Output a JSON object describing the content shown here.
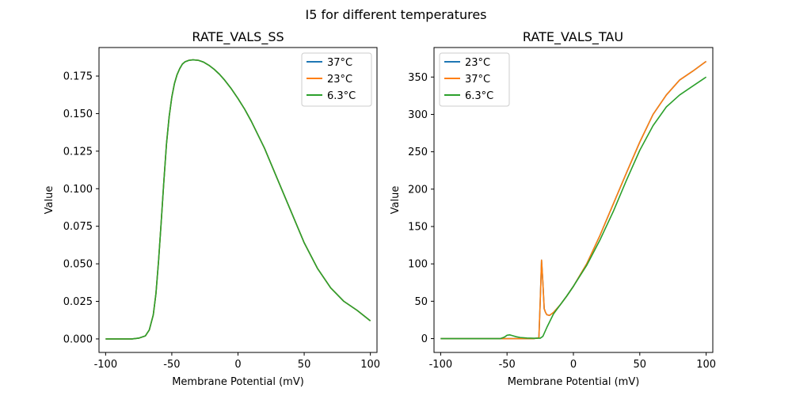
{
  "figure": {
    "suptitle": "I5 for different temperatures"
  },
  "chart_data": [
    {
      "type": "line",
      "title": "RATE_VALS_SS",
      "xlabel": "Membrane Potential (mV)",
      "ylabel": "Value",
      "xlim": [
        -105,
        105
      ],
      "ylim": [
        -0.009,
        0.194
      ],
      "xticks": [
        -100,
        -50,
        0,
        50,
        100
      ],
      "yticks": [
        0.0,
        0.025,
        0.05,
        0.075,
        0.1,
        0.125,
        0.15,
        0.175
      ],
      "ytick_labels": [
        "0.000",
        "0.025",
        "0.050",
        "0.075",
        "0.100",
        "0.125",
        "0.150",
        "0.175"
      ],
      "legend_position": "upper right",
      "series": [
        {
          "name": "37°C",
          "color": "#1f77b4",
          "x": [
            -100,
            -80,
            -75,
            -70,
            -67,
            -64,
            -62,
            -60,
            -58,
            -56,
            -54,
            -52,
            -50,
            -48,
            -46,
            -44,
            -42,
            -40,
            -37,
            -34,
            -30,
            -26,
            -22,
            -18,
            -14,
            -10,
            -5,
            0,
            5,
            10,
            20,
            30,
            40,
            50,
            60,
            70,
            80,
            90,
            100
          ],
          "y": [
            0.0,
            0.0,
            0.0005,
            0.002,
            0.006,
            0.016,
            0.03,
            0.052,
            0.078,
            0.105,
            0.13,
            0.148,
            0.161,
            0.17,
            0.176,
            0.18,
            0.183,
            0.1845,
            0.1855,
            0.1858,
            0.1855,
            0.1843,
            0.1822,
            0.1795,
            0.1762,
            0.1722,
            0.1665,
            0.16,
            0.153,
            0.145,
            0.127,
            0.106,
            0.085,
            0.064,
            0.047,
            0.034,
            0.025,
            0.019,
            0.012
          ]
        },
        {
          "name": "23°C",
          "color": "#ff7f0e",
          "x": [
            -100,
            -80,
            -75,
            -70,
            -67,
            -64,
            -62,
            -60,
            -58,
            -56,
            -54,
            -52,
            -50,
            -48,
            -46,
            -44,
            -42,
            -40,
            -37,
            -34,
            -30,
            -26,
            -22,
            -18,
            -14,
            -10,
            -5,
            0,
            5,
            10,
            20,
            30,
            40,
            50,
            60,
            70,
            80,
            90,
            100
          ],
          "y": [
            0.0,
            0.0,
            0.0005,
            0.002,
            0.006,
            0.016,
            0.03,
            0.052,
            0.078,
            0.105,
            0.13,
            0.148,
            0.161,
            0.17,
            0.176,
            0.18,
            0.183,
            0.1845,
            0.1855,
            0.1858,
            0.1855,
            0.1843,
            0.1822,
            0.1795,
            0.1762,
            0.1722,
            0.1665,
            0.16,
            0.153,
            0.145,
            0.127,
            0.106,
            0.085,
            0.064,
            0.047,
            0.034,
            0.025,
            0.019,
            0.012
          ]
        },
        {
          "name": "6.3°C",
          "color": "#2ca02c",
          "x": [
            -100,
            -80,
            -75,
            -70,
            -67,
            -64,
            -62,
            -60,
            -58,
            -56,
            -54,
            -52,
            -50,
            -48,
            -46,
            -44,
            -42,
            -40,
            -37,
            -34,
            -30,
            -26,
            -22,
            -18,
            -14,
            -10,
            -5,
            0,
            5,
            10,
            20,
            30,
            40,
            50,
            60,
            70,
            80,
            90,
            100
          ],
          "y": [
            0.0,
            0.0,
            0.0005,
            0.002,
            0.006,
            0.016,
            0.03,
            0.052,
            0.078,
            0.105,
            0.13,
            0.148,
            0.161,
            0.17,
            0.176,
            0.18,
            0.183,
            0.1845,
            0.1855,
            0.1858,
            0.1855,
            0.1843,
            0.1822,
            0.1795,
            0.1762,
            0.1722,
            0.1665,
            0.16,
            0.153,
            0.145,
            0.127,
            0.106,
            0.085,
            0.064,
            0.047,
            0.034,
            0.025,
            0.019,
            0.012
          ]
        }
      ]
    },
    {
      "type": "line",
      "title": "RATE_VALS_TAU",
      "xlabel": "Membrane Potential (mV)",
      "ylabel": "Value",
      "xlim": [
        -105,
        105
      ],
      "ylim": [
        -18.5,
        389.5
      ],
      "xticks": [
        -100,
        -50,
        0,
        50,
        100
      ],
      "yticks": [
        0,
        50,
        100,
        150,
        200,
        250,
        300,
        350
      ],
      "ytick_labels": [
        "0",
        "50",
        "100",
        "150",
        "200",
        "250",
        "300",
        "350"
      ],
      "legend_position": "upper left",
      "series": [
        {
          "name": "23°C",
          "color": "#1f77b4",
          "x": [
            -100,
            -60,
            -30,
            -26,
            -25,
            -24,
            -23,
            -22,
            -21,
            -20,
            -18,
            -15,
            -10,
            -5,
            0,
            10,
            20,
            30,
            40,
            50,
            60,
            70,
            80,
            90,
            100
          ],
          "y": [
            0,
            0,
            0,
            1,
            50,
            105,
            75,
            40,
            35,
            32,
            31,
            35,
            45,
            57,
            70,
            100,
            138,
            180,
            222,
            263,
            300,
            326,
            346,
            358,
            371
          ]
        },
        {
          "name": "37°C",
          "color": "#ff7f0e",
          "x": [
            -100,
            -60,
            -30,
            -26,
            -25,
            -24,
            -23,
            -22,
            -21,
            -20,
            -18,
            -15,
            -10,
            -5,
            0,
            10,
            20,
            30,
            40,
            50,
            60,
            70,
            80,
            90,
            100
          ],
          "y": [
            0,
            0,
            0,
            1,
            50,
            105,
            75,
            40,
            35,
            32,
            31,
            35,
            45,
            57,
            70,
            100,
            138,
            180,
            222,
            263,
            300,
            326,
            346,
            358,
            371
          ]
        },
        {
          "name": "6.3°C",
          "color": "#2ca02c",
          "x": [
            -100,
            -55,
            -52,
            -50,
            -48,
            -46,
            -43,
            -40,
            -35,
            -30,
            -25,
            -23,
            -20,
            -15,
            -10,
            -5,
            0,
            10,
            20,
            30,
            40,
            50,
            60,
            70,
            80,
            90,
            100
          ],
          "y": [
            0,
            0,
            2,
            4.5,
            5,
            4,
            2.5,
            1.5,
            0.8,
            0.5,
            0.5,
            3,
            15,
            33,
            45,
            57,
            70,
            98,
            132,
            170,
            212,
            252,
            285,
            310,
            326,
            338,
            350
          ]
        }
      ]
    }
  ]
}
